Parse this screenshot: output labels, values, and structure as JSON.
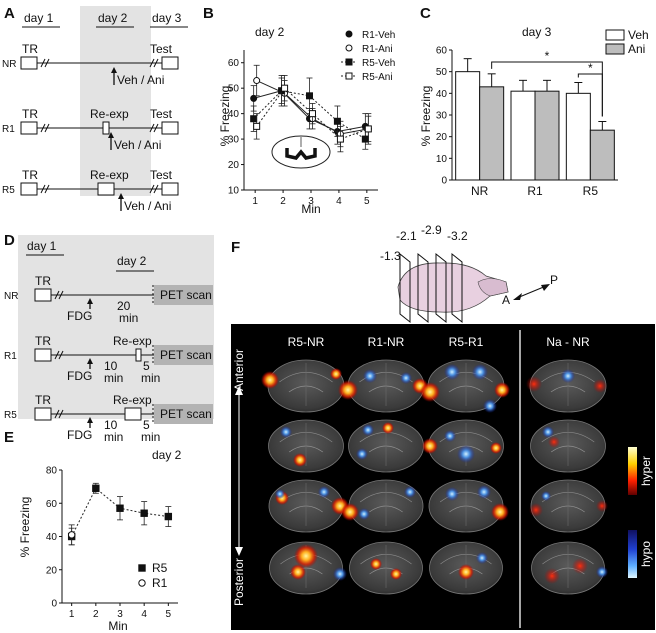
{
  "panels": {
    "A": {
      "letter": "A",
      "days": [
        "day 1",
        "day 2",
        "day 3"
      ],
      "rows": [
        {
          "label": "NR",
          "mid": "",
          "treat": "Veh / Ani"
        },
        {
          "label": "R1",
          "mid": "Re-exp",
          "treat": "Veh / Ani"
        },
        {
          "label": "R5",
          "mid": "Re-exp",
          "treat": "Veh / Ani"
        }
      ],
      "start": "TR",
      "end": "Test"
    },
    "D": {
      "letter": "D",
      "days": [
        "day 1",
        "day 2"
      ],
      "start": "TR",
      "end": "PET scan",
      "fdg": "FDG",
      "rows": [
        {
          "label": "NR",
          "mid": "",
          "time1": "20",
          "time1b": "min",
          "time2": "",
          "time2b": ""
        },
        {
          "label": "R1",
          "mid": "Re-exp",
          "time1": "10",
          "time1b": "min",
          "time2": "5",
          "time2b": "min"
        },
        {
          "label": "R5",
          "mid": "Re-exp",
          "time1": "10",
          "time1b": "min",
          "time2": "5",
          "time2b": "min"
        }
      ]
    },
    "F": {
      "letter": "F",
      "coords": [
        "-1.3",
        "-2.1",
        "-2.9",
        "-3.2"
      ],
      "axis_a": "A",
      "axis_p": "P",
      "columns": [
        "R5-NR",
        "R1-NR",
        "R5-R1",
        "Na - NR"
      ],
      "side_top": "Anterior",
      "side_bottom": "Posterior",
      "scale_hyper": "hyper",
      "scale_hypo": "hypo"
    }
  },
  "chart_data": [
    {
      "id": "B",
      "letter": "B",
      "type": "line",
      "title": "day 2",
      "xlabel": "Min",
      "ylabel": "% Freezing",
      "x": [
        1,
        2,
        3,
        4,
        5
      ],
      "xlim": [
        0.6,
        5.4
      ],
      "ylim": [
        10,
        65
      ],
      "yticks": [
        10,
        20,
        30,
        40,
        50,
        60
      ],
      "series": [
        {
          "name": "R1-Veh",
          "marker": "filled-circle",
          "line": "solid",
          "values": [
            46,
            49,
            38,
            33,
            35
          ],
          "err": [
            5,
            6,
            4,
            5,
            5
          ]
        },
        {
          "name": "R1-Ani",
          "marker": "open-circle",
          "line": "solid",
          "values": [
            53,
            48,
            38,
            32,
            34
          ],
          "err": [
            6,
            5,
            4,
            5,
            5
          ]
        },
        {
          "name": "R5-Veh",
          "marker": "filled-square",
          "line": "dotted",
          "values": [
            38,
            49,
            47,
            37,
            30
          ],
          "err": [
            5,
            5,
            7,
            6,
            4
          ]
        },
        {
          "name": "R5-Ani",
          "marker": "open-square",
          "line": "dotted",
          "values": [
            35,
            50,
            40,
            30,
            34
          ],
          "err": [
            5,
            5,
            4,
            5,
            6
          ]
        }
      ]
    },
    {
      "id": "C",
      "letter": "C",
      "type": "bar",
      "title": "day 3",
      "ylabel": "% Freezing",
      "categories": [
        "NR",
        "R1",
        "R5"
      ],
      "ylim": [
        0,
        60
      ],
      "yticks": [
        0,
        10,
        20,
        30,
        40,
        50,
        60
      ],
      "series": [
        {
          "name": "Veh",
          "color": "#ffffff",
          "values": [
            50,
            41,
            40
          ],
          "err": [
            6,
            5,
            5
          ]
        },
        {
          "name": "Ani",
          "color": "#bdbdbd",
          "values": [
            43,
            41,
            23
          ],
          "err": [
            6,
            5,
            4
          ]
        }
      ],
      "sig": [
        {
          "from": "NR-Ani",
          "to": "R5-Ani",
          "label": "*"
        },
        {
          "from": "R5-Veh",
          "to": "R5-Ani",
          "label": "*"
        }
      ]
    },
    {
      "id": "E",
      "letter": "E",
      "type": "scatter",
      "title": "day 2",
      "xlabel": "Min",
      "ylabel": "% Freezing",
      "x": [
        1,
        2,
        3,
        4,
        5
      ],
      "xlim": [
        0.6,
        5.4
      ],
      "ylim": [
        0,
        80
      ],
      "yticks": [
        0,
        20,
        40,
        60,
        80
      ],
      "series": [
        {
          "name": "R5",
          "marker": "filled-square",
          "line": "dotted",
          "x": [
            1,
            2,
            3,
            4,
            5
          ],
          "values": [
            40,
            69,
            57,
            54,
            52
          ],
          "err": [
            5,
            3,
            7,
            7,
            6
          ]
        },
        {
          "name": "R1",
          "marker": "open-circle",
          "line": "none",
          "x": [
            1
          ],
          "values": [
            41
          ],
          "err": [
            6
          ]
        }
      ]
    }
  ]
}
